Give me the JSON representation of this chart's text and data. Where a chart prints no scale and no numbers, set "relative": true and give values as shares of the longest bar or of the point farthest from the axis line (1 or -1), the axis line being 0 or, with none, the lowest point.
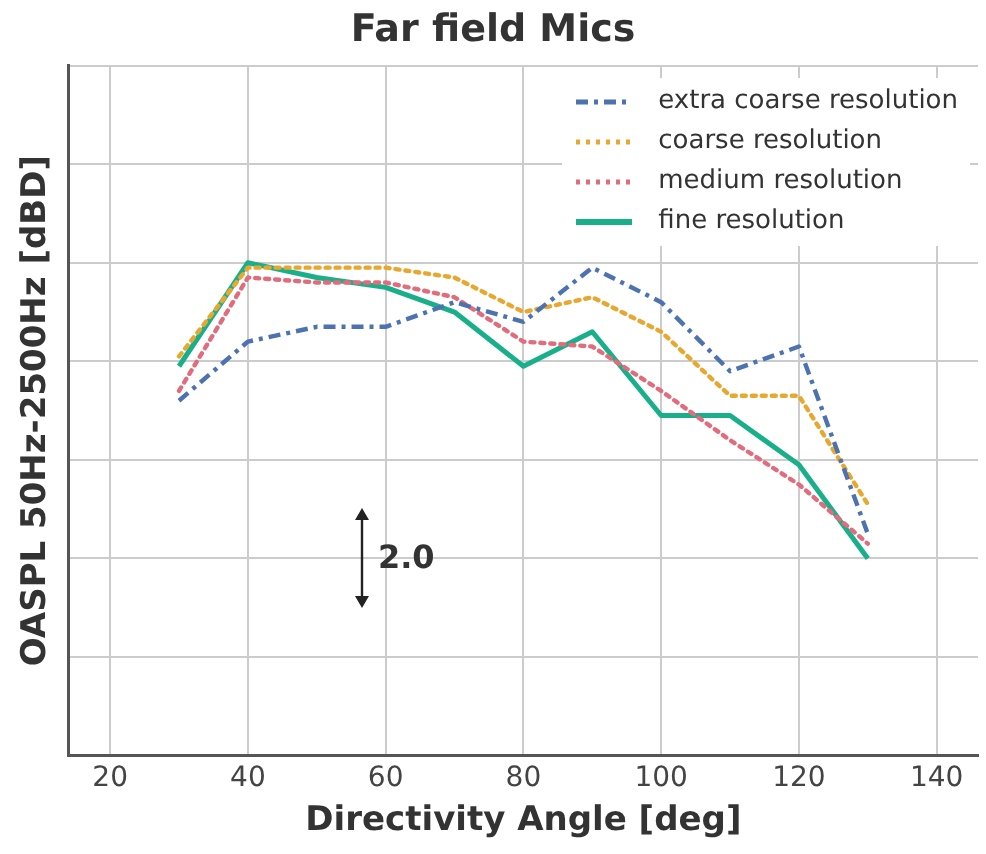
{
  "chart_data": {
    "type": "line",
    "title": "Far field Mics",
    "xlabel": "Directivity Angle [deg]",
    "ylabel": "OASPL 50Hz-2500Hz [dBD]",
    "relative": true,
    "x": [
      30,
      40,
      50,
      60,
      70,
      80,
      90,
      100,
      110,
      120,
      130
    ],
    "xlim": [
      14,
      146
    ],
    "xticks": [
      20,
      40,
      60,
      80,
      100,
      120,
      140
    ],
    "grid": true,
    "legend": "top right",
    "marker": "none",
    "annotations": [
      "2.0"
    ],
    "series": [
      {
        "name": "extra coarse resolution",
        "color": "#4c72b0",
        "line_style": "dashdot",
        "values": [
          0.72,
          0.84,
          0.87,
          0.87,
          0.92,
          0.88,
          0.99,
          0.92,
          0.78,
          0.83,
          0.45
        ]
      },
      {
        "name": "coarse resolution",
        "color": "#e8a830",
        "line_style": "dotted",
        "values": [
          0.81,
          0.99,
          0.99,
          0.99,
          0.97,
          0.9,
          0.93,
          0.86,
          0.73,
          0.73,
          0.51
        ]
      },
      {
        "name": "medium resolution",
        "color": "#e06c7c",
        "line_style": "dotted",
        "values": [
          0.74,
          0.97,
          0.96,
          0.96,
          0.93,
          0.84,
          0.83,
          0.74,
          0.64,
          0.55,
          0.43
        ]
      },
      {
        "name": "fine resolution",
        "color": "#1aaf8b",
        "line_style": "solid",
        "values": [
          0.79,
          1.0,
          0.97,
          0.95,
          0.9,
          0.79,
          0.86,
          0.69,
          0.69,
          0.59,
          0.4
        ]
      }
    ]
  }
}
